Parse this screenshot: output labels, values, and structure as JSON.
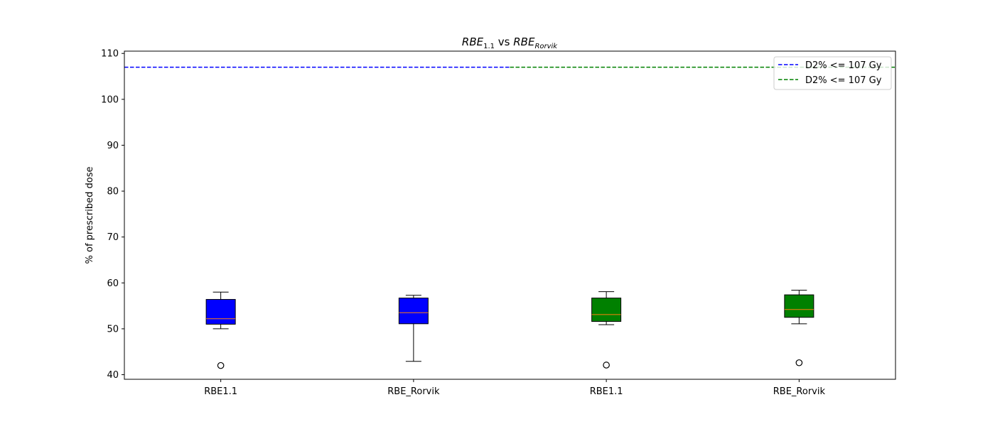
{
  "chart_data": {
    "type": "box",
    "title_parts": {
      "a_base": "RBE",
      "a_sub": "1.1",
      "vs": " vs ",
      "b_base": "RBE",
      "b_sub": "Rorvik"
    },
    "ylabel": "% of prescribed dose",
    "xlabel": "",
    "ylim": [
      39,
      110.5
    ],
    "yticks": [
      40,
      50,
      60,
      70,
      80,
      90,
      100,
      110
    ],
    "categories": [
      "RBE1.1",
      "RBE_Rorvik",
      "RBE1.1",
      "RBE_Rorvik"
    ],
    "boxes": [
      {
        "label": "RBE1.1",
        "color": "#0000ff",
        "q1": 51.0,
        "median": 52.2,
        "q3": 56.4,
        "whisker_low": 50.0,
        "whisker_high": 58.0,
        "outliers": [
          42.0
        ]
      },
      {
        "label": "RBE_Rorvik",
        "color": "#0000ff",
        "q1": 51.1,
        "median": 53.5,
        "q3": 56.7,
        "whisker_low": 42.9,
        "whisker_high": 57.3,
        "outliers": []
      },
      {
        "label": "RBE1.1",
        "color": "#008000",
        "q1": 51.6,
        "median": 53.1,
        "q3": 56.7,
        "whisker_low": 50.9,
        "whisker_high": 58.1,
        "outliers": [
          42.1
        ]
      },
      {
        "label": "RBE_Rorvik",
        "color": "#008000",
        "q1": 52.5,
        "median": 54.2,
        "q3": 57.4,
        "whisker_low": 51.1,
        "whisker_high": 58.4,
        "outliers": [
          42.6
        ]
      }
    ],
    "reference_lines": [
      {
        "value": 107,
        "color": "#0000ff",
        "style": "dashed",
        "label": "D2% <= 107 Gy",
        "span": "left-half"
      },
      {
        "value": 107,
        "color": "#008000",
        "style": "dashed",
        "label": "D2% <= 107 Gy",
        "span": "right-half"
      }
    ],
    "median_color": "#ff7f0e",
    "legend_position": "upper-right",
    "grid": false
  }
}
